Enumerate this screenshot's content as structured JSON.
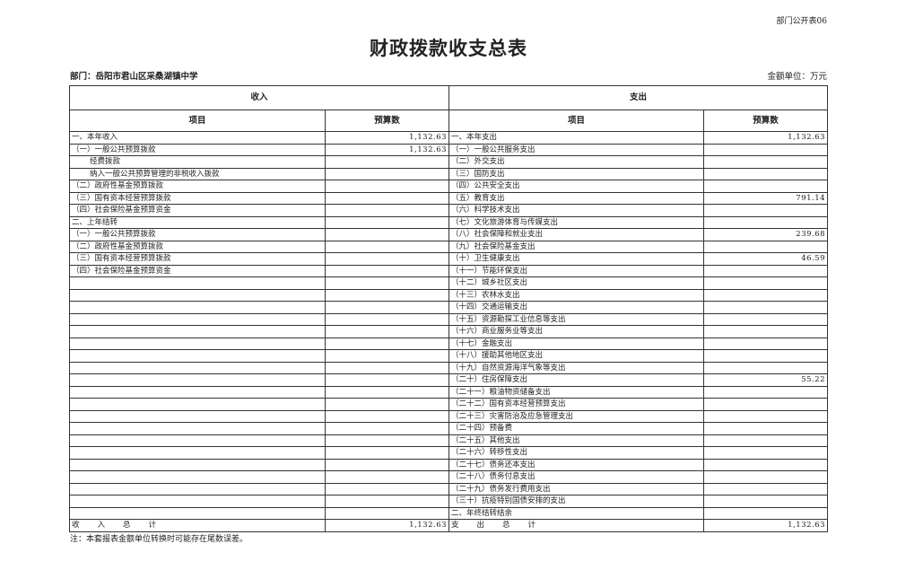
{
  "code": "部门公开表06",
  "title": "财政拨款收支总表",
  "department": "部门：岳阳市君山区采桑湖镇中学",
  "unit": "金额单位：万元",
  "headers": {
    "income": "收入",
    "expense": "支出",
    "item": "项目",
    "budget": "预算数"
  },
  "income_rows": [
    {
      "label": "一、本年收入",
      "value": "1,132.63"
    },
    {
      "label": "（一）一般公共预算拨款",
      "value": "1,132.63"
    },
    {
      "label": "经费拨款",
      "value": "",
      "indent": true
    },
    {
      "label": "纳入一般公共预算管理的非税收入拨款",
      "value": "",
      "indent": true
    },
    {
      "label": "（二）政府性基金预算拨款",
      "value": ""
    },
    {
      "label": "（三）国有资本经营预算拨款",
      "value": ""
    },
    {
      "label": "（四）社会保险基金预算资金",
      "value": ""
    },
    {
      "label": "二、上年结转",
      "value": ""
    },
    {
      "label": "（一）一般公共预算拨款",
      "value": ""
    },
    {
      "label": "（二）政府性基金预算拨款",
      "value": ""
    },
    {
      "label": "（三）国有资本经营预算拨款",
      "value": ""
    },
    {
      "label": "（四）社会保险基金预算资金",
      "value": ""
    }
  ],
  "expense_rows": [
    {
      "label": "一、本年支出",
      "value": "1,132.63"
    },
    {
      "label": "（一）一般公共服务支出",
      "value": ""
    },
    {
      "label": "（二）外交支出",
      "value": ""
    },
    {
      "label": "（三）国防支出",
      "value": ""
    },
    {
      "label": "（四）公共安全支出",
      "value": ""
    },
    {
      "label": "（五）教育支出",
      "value": "791.14"
    },
    {
      "label": "（六）科学技术支出",
      "value": ""
    },
    {
      "label": "（七）文化旅游体育与传媒支出",
      "value": ""
    },
    {
      "label": "（八）社会保障和就业支出",
      "value": "239.68"
    },
    {
      "label": "（九）社会保险基金支出",
      "value": ""
    },
    {
      "label": "（十）卫生健康支出",
      "value": "46.59"
    },
    {
      "label": "（十一）节能环保支出",
      "value": ""
    },
    {
      "label": "（十二）城乡社区支出",
      "value": ""
    },
    {
      "label": "（十三）农林水支出",
      "value": ""
    },
    {
      "label": "（十四）交通运输支出",
      "value": ""
    },
    {
      "label": "（十五）资源勘探工业信息等支出",
      "value": ""
    },
    {
      "label": "（十六）商业服务业等支出",
      "value": ""
    },
    {
      "label": "（十七）金融支出",
      "value": ""
    },
    {
      "label": "（十八）援助其他地区支出",
      "value": ""
    },
    {
      "label": "（十九）自然资源海洋气象等支出",
      "value": ""
    },
    {
      "label": "（二十）住房保障支出",
      "value": "55.22"
    },
    {
      "label": "（二十一）粮油物资储备支出",
      "value": ""
    },
    {
      "label": "（二十二）国有资本经营预算支出",
      "value": ""
    },
    {
      "label": "（二十三）灾害防治及应急管理支出",
      "value": ""
    },
    {
      "label": "（二十四）预备费",
      "value": ""
    },
    {
      "label": "（二十五）其他支出",
      "value": ""
    },
    {
      "label": "（二十六）转移性支出",
      "value": ""
    },
    {
      "label": "（二十七）债务还本支出",
      "value": ""
    },
    {
      "label": "（二十八）债务付息支出",
      "value": ""
    },
    {
      "label": "（二十九）债务发行费用支出",
      "value": ""
    },
    {
      "label": "（三十）抗疫特别国债安排的支出",
      "value": ""
    },
    {
      "label": "二、年终结转结余",
      "value": ""
    }
  ],
  "totals": {
    "income_label": "收入总计",
    "income_value": "1,132.63",
    "expense_label": "支出总计",
    "expense_value": "1,132.63"
  },
  "note": "注：本套报表金额单位转换时可能存在尾数误差。"
}
